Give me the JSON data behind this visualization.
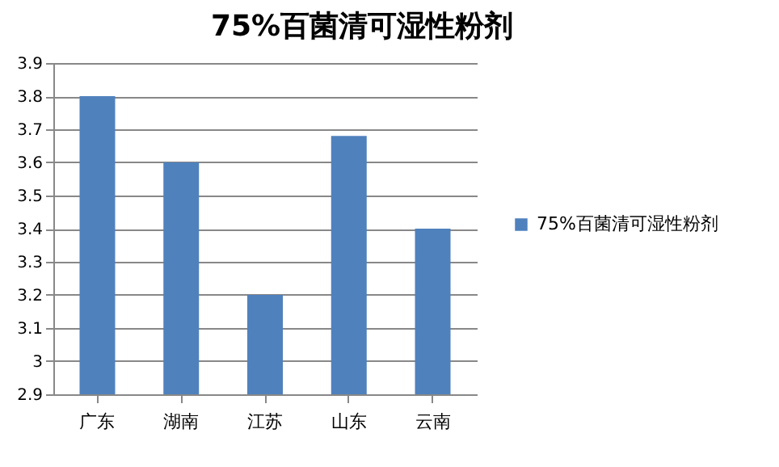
{
  "chart_data": {
    "type": "bar",
    "title": "75%百菌清可湿性粉剂",
    "categories": [
      "广东",
      "湖南",
      "江苏",
      "山东",
      "云南"
    ],
    "series": [
      {
        "name": "75%百菌清可湿性粉剂",
        "color": "#4f81bd",
        "values": [
          3.8,
          3.6,
          3.2,
          3.68,
          3.4
        ]
      }
    ],
    "ylim": [
      2.9,
      3.9
    ],
    "yticks": [
      2.9,
      3,
      3.1,
      3.2,
      3.3,
      3.4,
      3.5,
      3.6,
      3.7,
      3.8,
      3.9
    ],
    "grid": "y",
    "legend": "right"
  }
}
